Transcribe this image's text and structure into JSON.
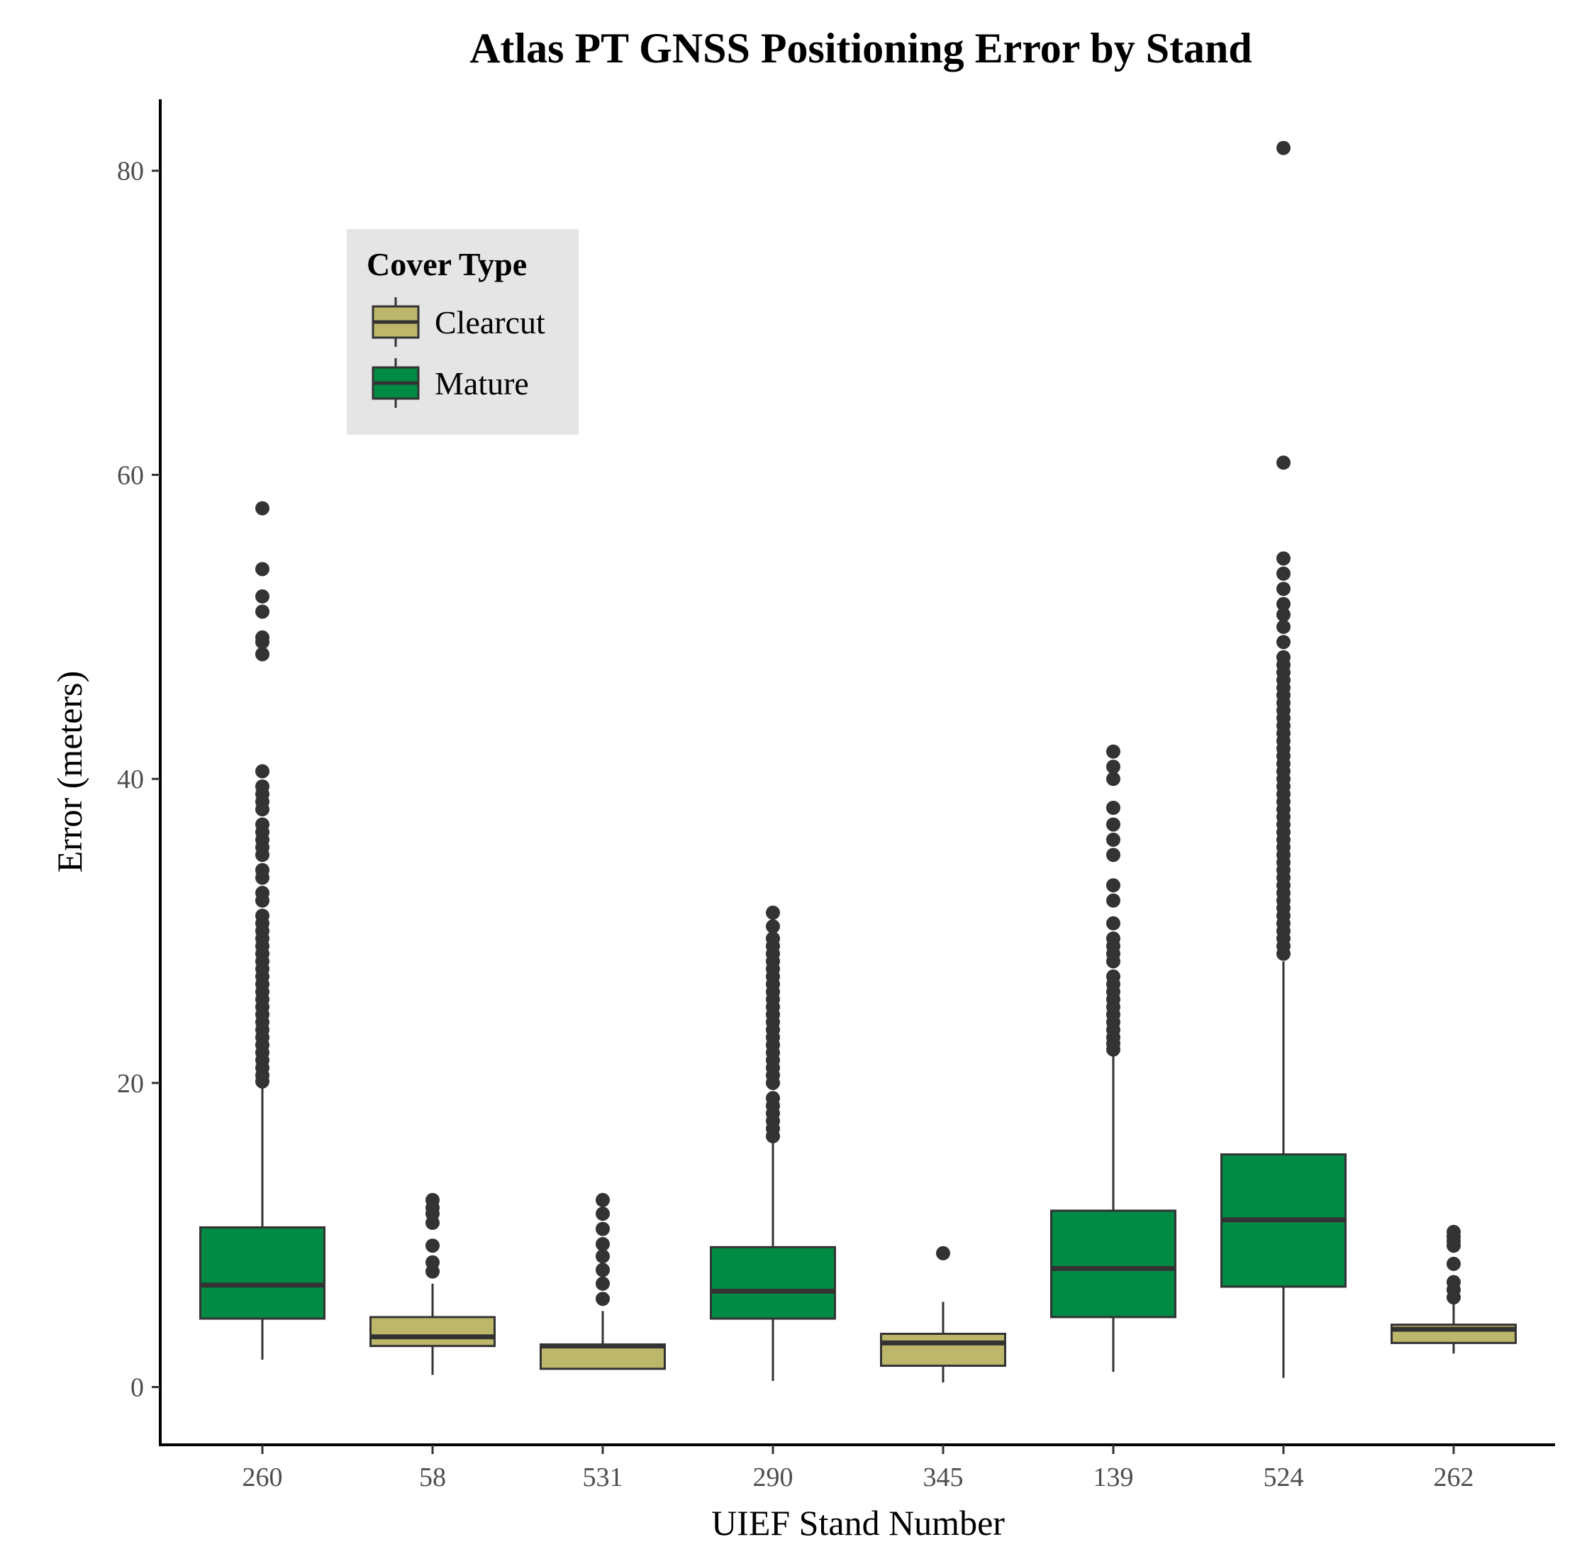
{
  "chart_data": {
    "type": "boxplot",
    "title": "Atlas PT GNSS Positioning Error by Stand",
    "xlabel": "UIEF Stand Number",
    "ylabel": "Error (meters)",
    "ylim": [
      -3.8,
      84.7
    ],
    "y_ticks": [
      0,
      20,
      40,
      60,
      80
    ],
    "grid": false,
    "legend": {
      "title": "Cover Type",
      "placement": "top-left",
      "entries": [
        {
          "name": "Clearcut",
          "color": "#BDB76B"
        },
        {
          "name": "Mature",
          "color": "#008B45"
        }
      ]
    },
    "categories": [
      "260",
      "58",
      "531",
      "290",
      "345",
      "139",
      "524",
      "262"
    ],
    "boxes": [
      {
        "category": "260",
        "cover": "Mature",
        "whisker_low": 1.8,
        "q1": 4.5,
        "median": 6.7,
        "q3": 10.5,
        "whisker_high": 19.8,
        "outliers": [
          20.1,
          20.5,
          21,
          21.5,
          22,
          22.5,
          23,
          23.5,
          24,
          24.5,
          25,
          25.5,
          26,
          26.5,
          27,
          27.5,
          28,
          28.5,
          29,
          29.5,
          30,
          30.5,
          31,
          32,
          32.5,
          33.5,
          34,
          35,
          35.5,
          36,
          36.5,
          37,
          38,
          38.5,
          39,
          39.5,
          40.5,
          48.2,
          49,
          49.3,
          51,
          52,
          53.8,
          57.8
        ]
      },
      {
        "category": "58",
        "cover": "Clearcut",
        "whisker_low": 0.8,
        "q1": 2.7,
        "median": 3.3,
        "q3": 4.6,
        "whisker_high": 6.8,
        "outliers": [
          7.6,
          8.2,
          9.3,
          10.8,
          11.4,
          11.8,
          12.3
        ]
      },
      {
        "category": "531",
        "cover": "Clearcut",
        "whisker_low": 1.2,
        "q1": 1.2,
        "median": 2.7,
        "q3": 2.8,
        "whisker_high": 5,
        "outliers": [
          5.8,
          6.8,
          7.7,
          8.6,
          9.4,
          10.4,
          11.4,
          12.3
        ]
      },
      {
        "category": "290",
        "cover": "Mature",
        "whisker_low": 0.4,
        "q1": 4.5,
        "median": 6.3,
        "q3": 9.2,
        "whisker_high": 16.2,
        "outliers": [
          16.5,
          17,
          17.5,
          18,
          18.5,
          19,
          20,
          20.5,
          21,
          21.5,
          22,
          22.5,
          23,
          23.5,
          24,
          24.5,
          25,
          25.5,
          26,
          26.5,
          27,
          27.5,
          28,
          28.5,
          29,
          29.5,
          30.3,
          31.2
        ]
      },
      {
        "category": "345",
        "cover": "Clearcut",
        "whisker_low": 0.3,
        "q1": 1.4,
        "median": 2.9,
        "q3": 3.5,
        "whisker_high": 5.6,
        "outliers": [
          8.8
        ]
      },
      {
        "category": "139",
        "cover": "Mature",
        "whisker_low": 1,
        "q1": 4.6,
        "median": 7.8,
        "q3": 11.6,
        "whisker_high": 21.9,
        "outliers": [
          22.2,
          22.6,
          23,
          23.5,
          24,
          24.5,
          25,
          25.5,
          26,
          26.5,
          27,
          28,
          28.5,
          29,
          29.5,
          30.5,
          32,
          33,
          35,
          36,
          37,
          38.1,
          40,
          40.8,
          41.8
        ]
      },
      {
        "category": "524",
        "cover": "Mature",
        "whisker_low": 0.6,
        "q1": 6.6,
        "median": 11,
        "q3": 15.3,
        "whisker_high": 28,
        "outliers": [
          28.5,
          29,
          29.5,
          30,
          30.5,
          31,
          31.5,
          32,
          32.5,
          33,
          33.5,
          34,
          34.5,
          35,
          35.5,
          36,
          36.5,
          37,
          37.5,
          38,
          38.5,
          39,
          39.5,
          40,
          40.5,
          41,
          41.5,
          42,
          42.5,
          43,
          43.5,
          44,
          44.5,
          45,
          45.5,
          46,
          46.5,
          47,
          47.5,
          48,
          49,
          50,
          50.8,
          51.5,
          52.5,
          53.5,
          54.5,
          60.8,
          81.5
        ]
      },
      {
        "category": "262",
        "cover": "Clearcut",
        "whisker_low": 2.2,
        "q1": 2.9,
        "median": 3.8,
        "q3": 4.1,
        "whisker_high": 5.5,
        "outliers": [
          5.9,
          6.4,
          6.9,
          8.1,
          9.3,
          9.6,
          9.9,
          10.2
        ]
      }
    ]
  }
}
